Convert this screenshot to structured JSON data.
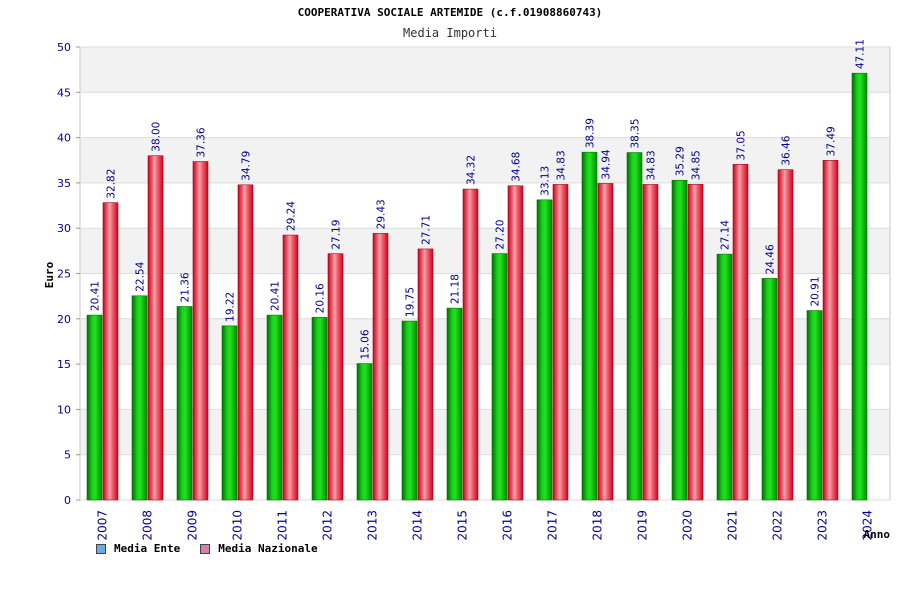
{
  "chart_data": {
    "type": "bar",
    "title": "COOPERATIVA SOCIALE ARTEMIDE (c.f.01908860743)",
    "subtitle": "Media Importi",
    "xlabel": "Anno",
    "ylabel": "Euro",
    "ylim": [
      0,
      50
    ],
    "yticks": [
      0,
      5,
      10,
      15,
      20,
      25,
      30,
      35,
      40,
      45,
      50
    ],
    "grid": true,
    "legend_position": "bottom-left",
    "categories": [
      "2007",
      "2008",
      "2009",
      "2010",
      "2011",
      "2012",
      "2013",
      "2014",
      "2015",
      "2016",
      "2017",
      "2018",
      "2019",
      "2020",
      "2021",
      "2022",
      "2023",
      "2024"
    ],
    "series": [
      {
        "name": "Media Ente",
        "color": "#00b000",
        "legend_color": "#6fa8e8",
        "values": [
          20.41,
          22.54,
          21.36,
          19.22,
          20.41,
          20.16,
          15.06,
          19.75,
          21.18,
          27.2,
          33.13,
          38.39,
          38.35,
          35.29,
          27.14,
          24.46,
          20.91,
          47.11
        ],
        "labels": [
          "20.41",
          "22.54",
          "21.36",
          "19.22",
          "20.41",
          "20.16",
          "15.06",
          "19.75",
          "21.18",
          "27.20",
          "33.13",
          "38.39",
          "38.35",
          "35.29",
          "27.14",
          "24.46",
          "20.91",
          "47.11"
        ]
      },
      {
        "name": "Media Nazionale",
        "color": "#e8202a",
        "legend_color": "#d77fb0",
        "values": [
          32.82,
          38.0,
          37.36,
          34.79,
          29.24,
          27.19,
          29.43,
          27.71,
          34.32,
          34.68,
          34.83,
          34.94,
          34.83,
          34.85,
          37.05,
          36.46,
          37.49,
          null
        ],
        "labels": [
          "32.82",
          "38.00",
          "37.36",
          "34.79",
          "29.24",
          "27.19",
          "29.43",
          "27.71",
          "34.32",
          "34.68",
          "34.83",
          "34.94",
          "34.83",
          "34.85",
          "37.05",
          "36.46",
          "37.49",
          ""
        ]
      }
    ]
  },
  "colors": {
    "tick_label": "#00008b",
    "value_label": "#00008b",
    "grid": "#dcdcdc",
    "band": "#f2f2f2"
  }
}
